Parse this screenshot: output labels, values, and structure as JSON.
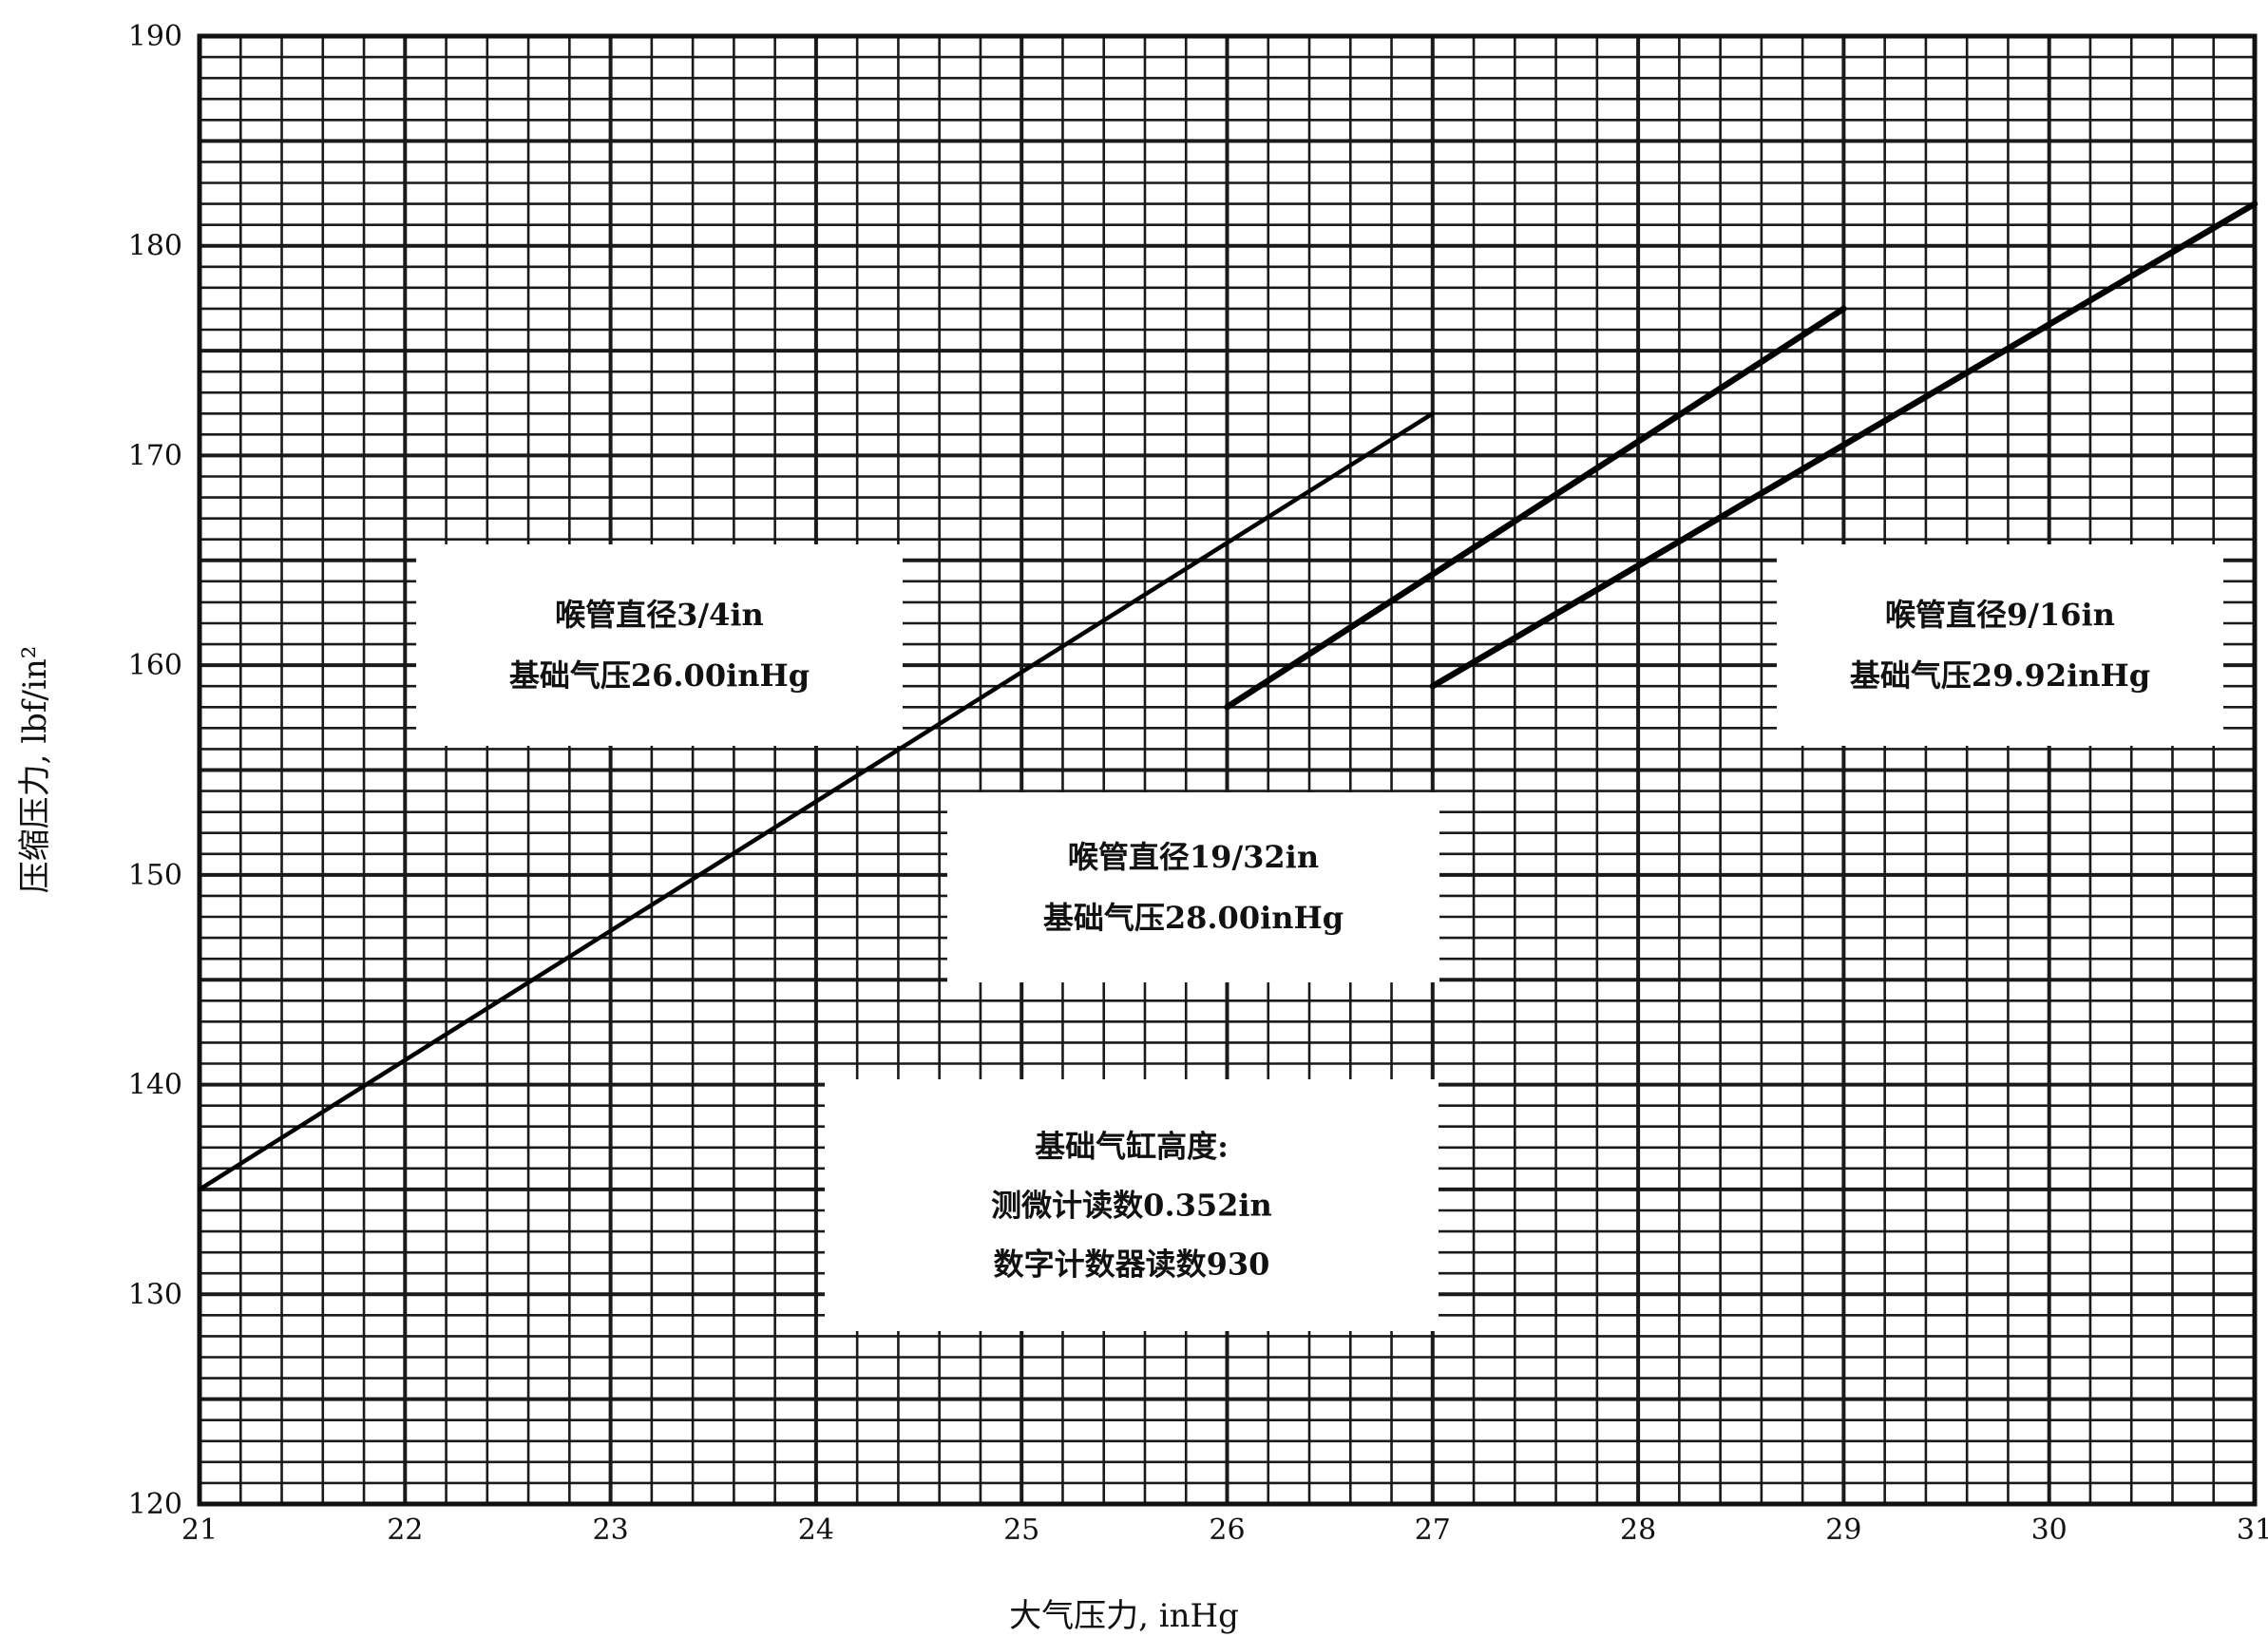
{
  "chart_data": {
    "type": "line",
    "xlabel": "大气压力, inHg",
    "ylabel": "压缩压力, lbf/in²",
    "xlim": [
      21,
      31
    ],
    "ylim": [
      120,
      190
    ],
    "x_ticks": [
      "21",
      "22",
      "23",
      "24",
      "25",
      "26",
      "27",
      "28",
      "29",
      "30",
      "31"
    ],
    "y_ticks": [
      "120",
      "130",
      "140",
      "150",
      "160",
      "170",
      "180",
      "190"
    ],
    "grid": true,
    "series": [
      {
        "name": "喉管直径3/4in 基础气压26.00inHg",
        "x": [
          21.0,
          27.0
        ],
        "y": [
          135.0,
          172.0
        ]
      },
      {
        "name": "喉管直径19/32in 基础气压28.00inHg",
        "x": [
          26.0,
          29.0
        ],
        "y": [
          158.0,
          177.0
        ]
      },
      {
        "name": "喉管直径9/16in 基础气压29.92inHg",
        "x": [
          27.0,
          31.0
        ],
        "y": [
          159.0,
          182.0
        ]
      }
    ],
    "annotations": [
      {
        "id": "note-34",
        "lines": [
          "喉管直径3/4in",
          "基础气压26.00inHg"
        ]
      },
      {
        "id": "note-1932",
        "lines": [
          "喉管直径19/32in",
          "基础气压28.00inHg"
        ]
      },
      {
        "id": "note-916",
        "lines": [
          "喉管直径9/16in",
          "基础气压29.92inHg"
        ]
      },
      {
        "id": "note-base",
        "lines": [
          "基础气缸高度:",
          "测微计读数0.352in",
          "数字计数器读数930"
        ]
      }
    ]
  }
}
